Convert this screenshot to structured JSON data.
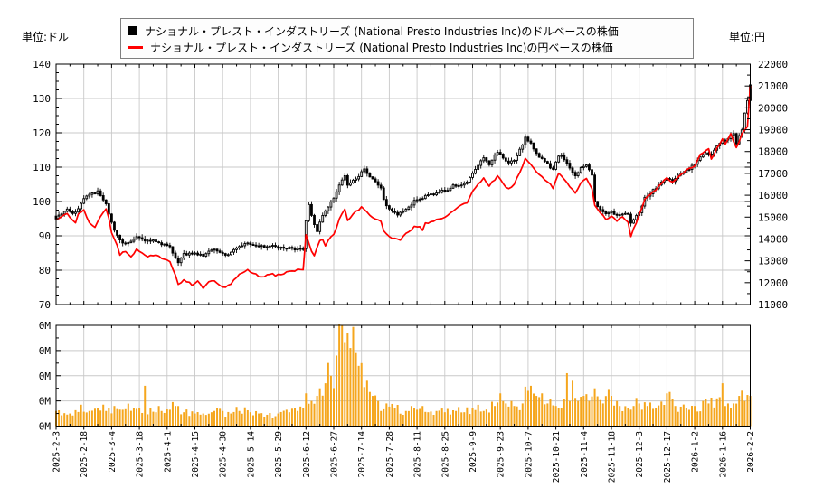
{
  "header": {
    "unit_left": "単位:ドル",
    "unit_right": "単位:円"
  },
  "legend": {
    "items": [
      {
        "marker": "square",
        "color": "#000000",
        "label": "ナショナル・プレスト・インダストリーズ (National Presto Industries Inc)のドルベースの株価"
      },
      {
        "marker": "line",
        "color": "#ff0000",
        "label": "ナショナル・プレスト・インダストリーズ (National Presto Industries Inc)の円ベースの株価"
      }
    ]
  },
  "colors": {
    "candle_up_fill": "#ffffff",
    "candle_down_fill": "#000000",
    "candle_stroke": "#000000",
    "yen_line": "#ff0000",
    "volume_bar": "#f5a61d",
    "grid": "#c9c9c9",
    "axis": "#000000"
  },
  "axes": {
    "left": {
      "unit": "ドル",
      "ticks": [
        140,
        130,
        120,
        110,
        100,
        90,
        80,
        70
      ]
    },
    "right": {
      "unit": "円",
      "ticks": [
        22000,
        21000,
        20000,
        19000,
        18000,
        17000,
        16000,
        15000,
        14000,
        13000,
        12000,
        11000
      ]
    },
    "volume": {
      "ticks": [
        "0M",
        "0M",
        "0M",
        "0M",
        "0M"
      ]
    },
    "x": {
      "tick_interval_days": 10,
      "labels": [
        "2025-2-3",
        "2025-2-18",
        "2025-3-4",
        "2025-3-18",
        "2025-4-1",
        "2025-4-15",
        "2025-4-30",
        "2025-5-14",
        "2025-5-29",
        "2025-6-12",
        "2025-6-27",
        "2025-7-14",
        "2025-7-28",
        "2025-8-11",
        "2025-8-25",
        "2025-9-9",
        "2025-9-23",
        "2025-10-7",
        "2025-10-21",
        "2025-11-4",
        "2025-11-18",
        "2025-12-3",
        "2025-12-17",
        "2026-1-2",
        "2026-1-16",
        "2026-2-2"
      ]
    }
  },
  "chart_data": [
    {
      "type": "candlestick",
      "name": "ナショナル・プレスト・インダストリーズ (National Presto Industries Inc)のドルベースの株価",
      "unit": "USD",
      "ylim": [
        70,
        140
      ],
      "x_mode": "trading-day-index",
      "n_days": 251,
      "keypoints": {
        "day": [
          0,
          2,
          4,
          6,
          8,
          10,
          12,
          14,
          15,
          16,
          18,
          19,
          21,
          23,
          25,
          27,
          29,
          31,
          33,
          35,
          37,
          39,
          41,
          43,
          44,
          46,
          49,
          51,
          53,
          55,
          57,
          59,
          61,
          63,
          65,
          67,
          69,
          71,
          73,
          75,
          77,
          79,
          81,
          83,
          85,
          87,
          89,
          90,
          91,
          93,
          94,
          95,
          97,
          99,
          100,
          102,
          103,
          104,
          105,
          107,
          109,
          110,
          111,
          112,
          114,
          116,
          117,
          118,
          119,
          121,
          123,
          124,
          126,
          128,
          129,
          131,
          133,
          135,
          137,
          139,
          141,
          143,
          145,
          148,
          150,
          152,
          154,
          156,
          158,
          159,
          161,
          163,
          165,
          167,
          169,
          171,
          173,
          176,
          178,
          179,
          181,
          183,
          185,
          187,
          189,
          191,
          193,
          194,
          196,
          198,
          200,
          202,
          204,
          206,
          207,
          208,
          210,
          212,
          214,
          216,
          218,
          220,
          222,
          224,
          226,
          228,
          230,
          232,
          234,
          236,
          238,
          240,
          242,
          244,
          245,
          247,
          248,
          249,
          250
        ],
        "close_usd": [
          95.5,
          96.5,
          97.5,
          96.5,
          98,
          100.5,
          102,
          102.5,
          103,
          101.5,
          99.5,
          96.5,
          91.5,
          88.5,
          88,
          88.5,
          89.5,
          89,
          88.5,
          88.7,
          88,
          87.5,
          86.5,
          83.5,
          82.5,
          84.5,
          85,
          84.5,
          84,
          85.5,
          85.8,
          85,
          84.3,
          85,
          86.5,
          87.3,
          88,
          87.5,
          87.2,
          86.8,
          87,
          86.8,
          86.5,
          86.5,
          86.2,
          86.3,
          86.5,
          94.5,
          99,
          93,
          91.5,
          94,
          97.5,
          100,
          101,
          104.5,
          106,
          107.5,
          104.5,
          106,
          107.5,
          109,
          109.5,
          108,
          106.5,
          105,
          104,
          100.5,
          98.5,
          97,
          96.3,
          96.5,
          97.5,
          99,
          100,
          100.5,
          101.5,
          102,
          102.5,
          103,
          103.5,
          104.5,
          104.5,
          106,
          108.5,
          110.5,
          113,
          111,
          113.5,
          114.5,
          112.5,
          111,
          112,
          115,
          118.5,
          117,
          114,
          111.5,
          110,
          109.5,
          113.5,
          112.5,
          109.5,
          107.5,
          109.8,
          110.3,
          108,
          100,
          97.5,
          96.5,
          96.8,
          96.3,
          96.5,
          96,
          94,
          95,
          97,
          101,
          102.5,
          104,
          105.5,
          107,
          106,
          107.5,
          108.5,
          109.5,
          111,
          113,
          114.5,
          113.5,
          116,
          117.5,
          118.5,
          119.5,
          117,
          121,
          126,
          129.5,
          134
        ]
      }
    },
    {
      "type": "line",
      "name": "ナショナル・プレスト・インダストリーズ (National Presto Industries Inc)の円ベースの株価",
      "unit": "JPY",
      "ylim": [
        11000,
        22000
      ],
      "x_mode": "trading-day-index",
      "n_days": 251,
      "keypoints": {
        "day": [
          0,
          2,
          4,
          6,
          7,
          8,
          10,
          12,
          14,
          16,
          18,
          19,
          20,
          22,
          23,
          25,
          27,
          29,
          31,
          33,
          35,
          37,
          39,
          41,
          43,
          44,
          46,
          49,
          51,
          53,
          55,
          57,
          59,
          61,
          63,
          65,
          67,
          69,
          71,
          73,
          75,
          77,
          79,
          81,
          83,
          85,
          87,
          89,
          90,
          91,
          92,
          93,
          95,
          96,
          97,
          99,
          100,
          102,
          104,
          105,
          107,
          110,
          112,
          114,
          117,
          118,
          119,
          121,
          124,
          126,
          128,
          129,
          131,
          132,
          133,
          135,
          137,
          139,
          141,
          143,
          145,
          148,
          150,
          152,
          154,
          156,
          158,
          159,
          161,
          163,
          165,
          167,
          169,
          171,
          173,
          176,
          178,
          179,
          181,
          183,
          185,
          187,
          189,
          191,
          193,
          194,
          196,
          198,
          200,
          202,
          204,
          206,
          207,
          208,
          210,
          212,
          214,
          216,
          218,
          220,
          222,
          224,
          227,
          230,
          232,
          235,
          236,
          238,
          240,
          241,
          243,
          245,
          247,
          249,
          250
        ],
        "close_jpy": [
          14929,
          15007,
          15133,
          14850,
          14740,
          15117,
          15306,
          14771,
          14520,
          15007,
          15337,
          14929,
          14300,
          13671,
          13279,
          13436,
          13169,
          13561,
          13357,
          13169,
          13247,
          13200,
          13090,
          12964,
          12336,
          11911,
          12147,
          11911,
          12069,
          11770,
          12021,
          12100,
          11864,
          11754,
          11943,
          12257,
          12461,
          12571,
          12414,
          12304,
          12241,
          12414,
          12336,
          12414,
          12461,
          12540,
          12603,
          12634,
          14221,
          13829,
          13436,
          13231,
          13907,
          14017,
          13719,
          14064,
          14190,
          14929,
          15400,
          14850,
          15164,
          15447,
          15243,
          15007,
          14771,
          14379,
          14221,
          14064,
          13986,
          14221,
          14457,
          14614,
          14536,
          14379,
          14693,
          14771,
          14850,
          14929,
          15086,
          15243,
          15479,
          15636,
          16186,
          16500,
          16814,
          16421,
          16736,
          16893,
          16500,
          16264,
          16500,
          17050,
          17679,
          17443,
          17050,
          16736,
          16500,
          16343,
          16971,
          16736,
          16343,
          16107,
          16579,
          16736,
          16343,
          15557,
          15164,
          14929,
          15007,
          14850,
          15007,
          14771,
          14064,
          14457,
          15086,
          15793,
          16029,
          16264,
          16500,
          16814,
          16579,
          16814,
          17129,
          17364,
          17836,
          18150,
          17679,
          18150,
          18543,
          18307,
          18779,
          18150,
          18779,
          19171,
          20979
        ]
      }
    },
    {
      "type": "bar",
      "name": "出来高",
      "unit": "M株",
      "ylim": [
        0,
        0.4
      ],
      "x_mode": "trading-day-index",
      "n_days": 251,
      "keypoints": {
        "day": [
          0,
          5,
          9,
          12,
          15,
          18,
          21,
          24,
          28,
          30,
          32,
          34,
          38,
          41,
          43,
          46,
          50,
          53,
          56,
          60,
          63,
          66,
          70,
          73,
          76,
          80,
          84,
          87,
          89,
          90,
          92,
          94,
          95,
          97,
          99,
          101,
          103,
          104,
          105,
          106,
          108,
          110,
          112,
          114,
          116,
          119,
          122,
          126,
          130,
          134,
          137,
          140,
          144,
          147,
          150,
          154,
          158,
          160,
          162,
          165,
          168,
          170,
          171,
          173,
          175,
          177,
          180,
          182,
          184,
          186,
          188,
          190,
          192,
          194,
          197,
          200,
          203,
          206,
          208,
          210,
          213,
          216,
          220,
          223,
          227,
          230,
          233,
          235,
          238,
          240,
          242,
          244,
          246,
          248,
          250
        ],
        "volume_m": [
          0.06,
          0.05,
          0.085,
          0.06,
          0.07,
          0.06,
          0.08,
          0.065,
          0.07,
          0.07,
          0.07,
          0.07,
          0.06,
          0.065,
          0.08,
          0.055,
          0.05,
          0.05,
          0.055,
          0.06,
          0.05,
          0.06,
          0.055,
          0.05,
          0.045,
          0.05,
          0.055,
          0.06,
          0.07,
          0.13,
          0.1,
          0.12,
          0.15,
          0.17,
          0.2,
          0.28,
          0.4,
          0.33,
          0.37,
          0.31,
          0.29,
          0.25,
          0.18,
          0.12,
          0.1,
          0.09,
          0.07,
          0.06,
          0.065,
          0.055,
          0.06,
          0.055,
          0.06,
          0.055,
          0.07,
          0.06,
          0.08,
          0.08,
          0.09,
          0.08,
          0.09,
          0.14,
          0.12,
          0.12,
          0.13,
          0.09,
          0.08,
          0.07,
          0.1,
          0.09,
          0.1,
          0.12,
          0.1,
          0.15,
          0.09,
          0.12,
          0.08,
          0.07,
          0.08,
          0.09,
          0.08,
          0.07,
          0.13,
          0.08,
          0.07,
          0.08,
          0.1,
          0.09,
          0.11,
          0.1,
          0.09,
          0.09,
          0.12,
          0.1,
          0.12
        ],
        "spikes": {
          "32": 0.16,
          "160": 0.13,
          "171": 0.16,
          "184": 0.21,
          "186": 0.18,
          "240": 0.17
        }
      }
    }
  ]
}
